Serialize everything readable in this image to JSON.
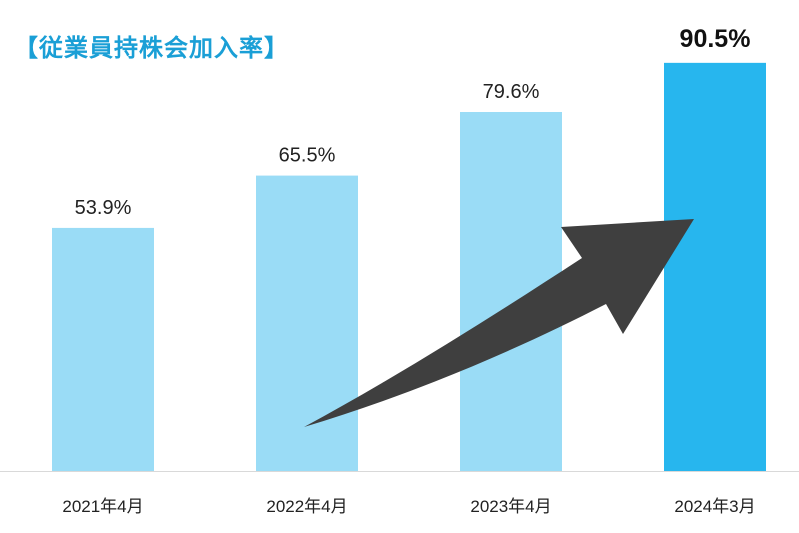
{
  "chart_data": {
    "type": "bar",
    "title": "【従業員持株会加入率】",
    "categories": [
      "2021年4月",
      "2022年4月",
      "2023年4月",
      "2024年3月"
    ],
    "values": [
      53.9,
      65.5,
      79.6,
      90.5
    ],
    "value_labels": [
      "53.9%",
      "65.5%",
      "79.6%",
      "90.5%"
    ],
    "xlabel": "",
    "ylabel": "",
    "ylim": [
      0,
      100
    ],
    "grid": false,
    "highlight_index": 3,
    "colors": {
      "bar": "#9adcf6",
      "highlight_bar": "#27b6ee",
      "title": "#1a9fd6",
      "arrow": "#3f3f3f",
      "axis": "#d9d9d9"
    },
    "annotation": "upward-trend-arrow"
  }
}
